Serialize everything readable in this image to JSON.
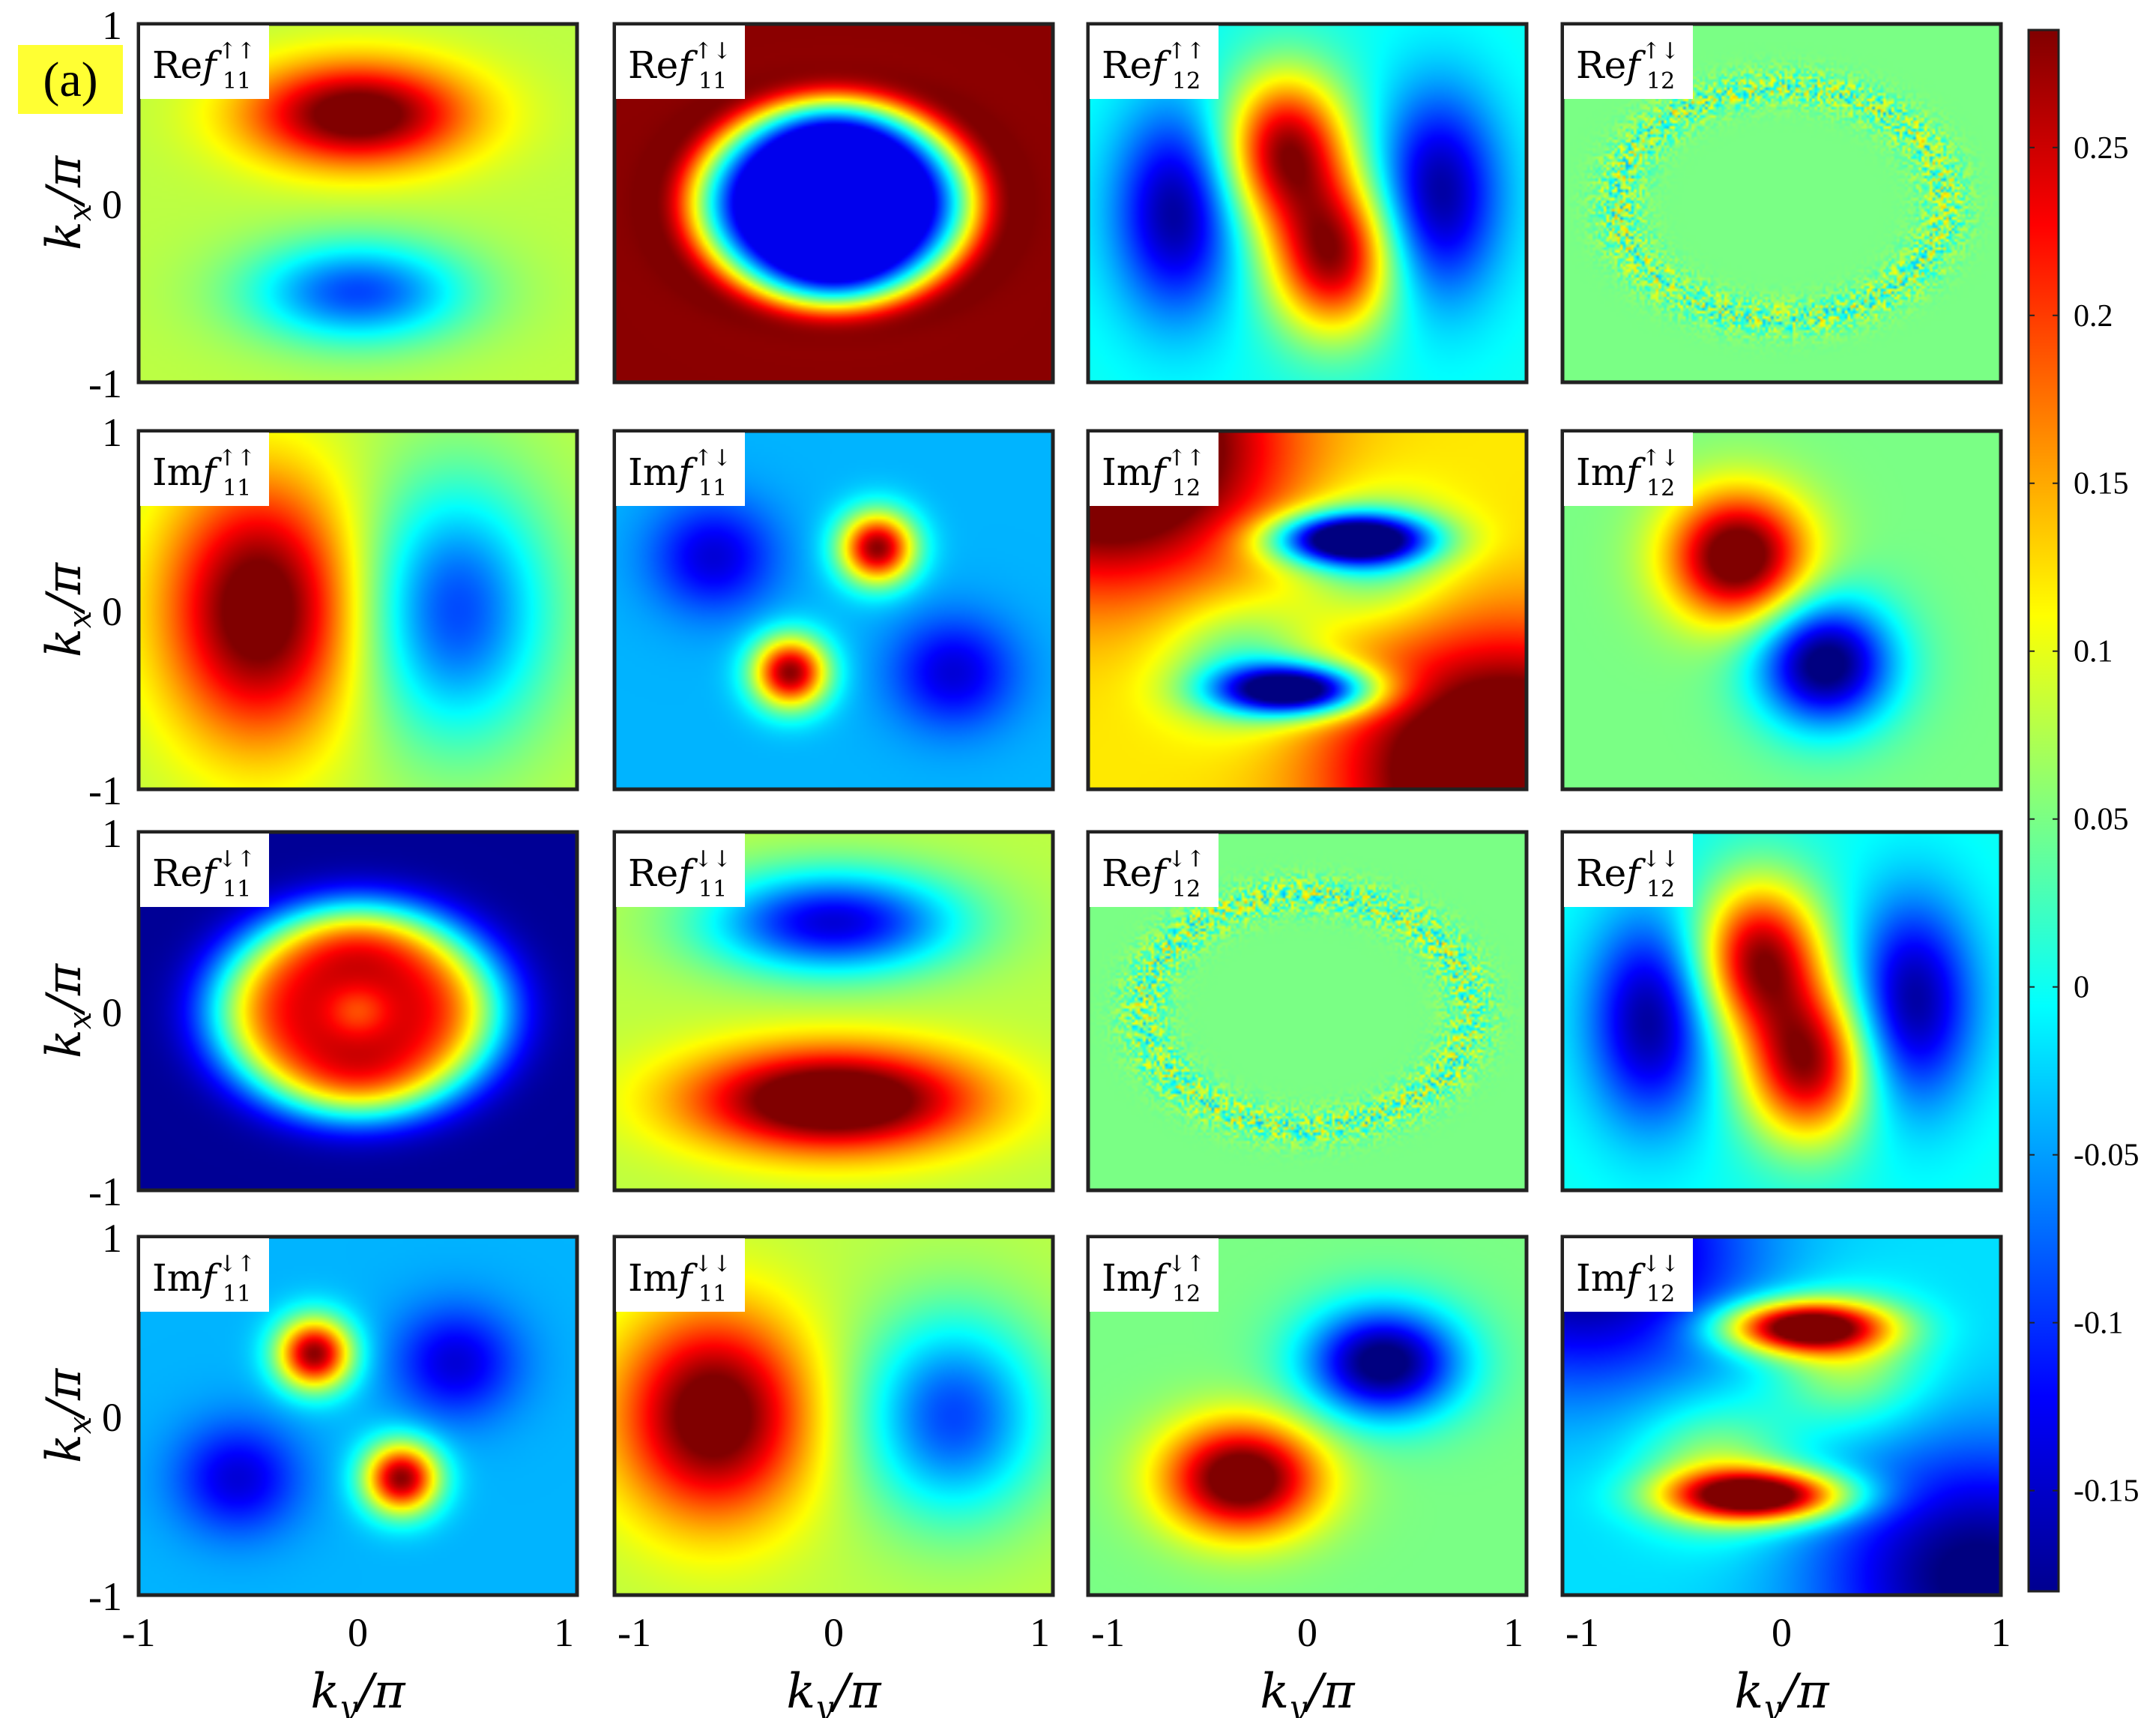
{
  "panel_label": "(a)",
  "chart_data": {
    "type": "heatmap",
    "grid": "4x4",
    "colormap": "jet",
    "panels": [
      {
        "title_prefix": "Re",
        "title_sub": "11",
        "title_sup": "↑↑",
        "pattern": [
          {
            "cx": 0,
            "cy": -0.5,
            "sx": 0.35,
            "sy": 0.2,
            "a": 0.24
          },
          {
            "cx": 0,
            "cy": 0.5,
            "sx": 0.35,
            "sy": 0.2,
            "a": -0.17
          }
        ],
        "base": 0.08
      },
      {
        "title_prefix": "Re",
        "title_sub": "11",
        "title_sup": "↑↓",
        "pattern": "ring_low",
        "base": 0.0
      },
      {
        "title_prefix": "Re",
        "title_sub": "12",
        "title_sup": "↑↑",
        "pattern": [
          {
            "cx": -0.1,
            "cy": -0.3,
            "sx": 0.2,
            "sy": 0.3,
            "a": 0.27
          },
          {
            "cx": 0.12,
            "cy": 0.3,
            "sx": 0.2,
            "sy": 0.3,
            "a": 0.27
          },
          {
            "cx": -0.6,
            "cy": 0.05,
            "sx": 0.2,
            "sy": 0.4,
            "a": -0.17
          },
          {
            "cx": 0.6,
            "cy": -0.05,
            "sx": 0.2,
            "sy": 0.4,
            "a": -0.17
          }
        ],
        "base": 0.0
      },
      {
        "title_prefix": "Re",
        "title_sub": "12",
        "title_sup": "↑↓",
        "pattern": "noise",
        "base": 0.05
      },
      {
        "title_prefix": "Im",
        "title_sub": "11",
        "title_sup": "↑↑",
        "pattern": [
          {
            "cx": -0.45,
            "cy": 0,
            "sx": 0.3,
            "sy": 0.5,
            "a": 0.24
          },
          {
            "cx": 0.45,
            "cy": 0,
            "sx": 0.3,
            "sy": 0.5,
            "a": -0.17
          }
        ],
        "base": 0.08
      },
      {
        "title_prefix": "Im",
        "title_sub": "11",
        "title_sup": "↑↓",
        "pattern": [
          {
            "cx": 0.2,
            "cy": -0.35,
            "sx": 0.12,
            "sy": 0.14,
            "a": 0.32
          },
          {
            "cx": -0.2,
            "cy": 0.35,
            "sx": 0.12,
            "sy": 0.14,
            "a": 0.32
          },
          {
            "cx": -0.55,
            "cy": -0.3,
            "sx": 0.2,
            "sy": 0.22,
            "a": -0.1
          },
          {
            "cx": 0.55,
            "cy": 0.35,
            "sx": 0.2,
            "sy": 0.22,
            "a": -0.1
          }
        ],
        "base": -0.04
      },
      {
        "title_prefix": "Im",
        "title_sub": "12",
        "title_sup": "↑↑",
        "pattern": "im12uu",
        "base": 0.0
      },
      {
        "title_prefix": "Im",
        "title_sub": "12",
        "title_sup": "↑↓",
        "pattern": [
          {
            "cx": -0.2,
            "cy": -0.3,
            "sx": 0.22,
            "sy": 0.25,
            "a": 0.28
          },
          {
            "cx": 0.2,
            "cy": 0.3,
            "sx": 0.22,
            "sy": 0.25,
            "a": -0.25
          }
        ],
        "base": 0.05
      },
      {
        "title_prefix": "Re",
        "title_sub": "11",
        "title_sup": "↓↑",
        "pattern": "ring_high",
        "base": 0.0
      },
      {
        "title_prefix": "Re",
        "title_sub": "11",
        "title_sup": "↓↓",
        "pattern": [
          {
            "cx": 0,
            "cy": -0.5,
            "sx": 0.4,
            "sy": 0.2,
            "a": -0.22
          },
          {
            "cx": 0,
            "cy": 0.5,
            "sx": 0.45,
            "sy": 0.2,
            "a": 0.28
          }
        ],
        "base": 0.08
      },
      {
        "title_prefix": "Re",
        "title_sub": "12",
        "title_sup": "↓↑",
        "pattern": "noise",
        "base": 0.05
      },
      {
        "title_prefix": "Re",
        "title_sub": "12",
        "title_sup": "↓↓",
        "pattern": [
          {
            "cx": -0.1,
            "cy": -0.3,
            "sx": 0.2,
            "sy": 0.3,
            "a": 0.27
          },
          {
            "cx": 0.12,
            "cy": 0.3,
            "sx": 0.2,
            "sy": 0.3,
            "a": 0.27
          },
          {
            "cx": -0.6,
            "cy": 0.05,
            "sx": 0.2,
            "sy": 0.4,
            "a": -0.17
          },
          {
            "cx": 0.6,
            "cy": -0.05,
            "sx": 0.2,
            "sy": 0.4,
            "a": -0.17
          }
        ],
        "base": 0.0
      },
      {
        "title_prefix": "Im",
        "title_sub": "11",
        "title_sup": "↓↑",
        "pattern": [
          {
            "cx": -0.2,
            "cy": -0.35,
            "sx": 0.12,
            "sy": 0.14,
            "a": 0.32
          },
          {
            "cx": 0.2,
            "cy": 0.35,
            "sx": 0.12,
            "sy": 0.14,
            "a": 0.32
          },
          {
            "cx": 0.45,
            "cy": -0.3,
            "sx": 0.2,
            "sy": 0.22,
            "a": -0.1
          },
          {
            "cx": -0.55,
            "cy": 0.35,
            "sx": 0.2,
            "sy": 0.22,
            "a": -0.1
          }
        ],
        "base": -0.04
      },
      {
        "title_prefix": "Im",
        "title_sub": "11",
        "title_sup": "↓↓",
        "pattern": [
          {
            "cx": -0.55,
            "cy": 0,
            "sx": 0.3,
            "sy": 0.4,
            "a": 0.24
          },
          {
            "cx": 0.55,
            "cy": 0,
            "sx": 0.3,
            "sy": 0.4,
            "a": -0.17
          }
        ],
        "base": 0.08
      },
      {
        "title_prefix": "Im",
        "title_sub": "12",
        "title_sup": "↓↑",
        "pattern": [
          {
            "cx": -0.3,
            "cy": 0.35,
            "sx": 0.25,
            "sy": 0.22,
            "a": 0.28
          },
          {
            "cx": 0.35,
            "cy": -0.3,
            "sx": 0.25,
            "sy": 0.22,
            "a": -0.25
          }
        ],
        "base": 0.05
      },
      {
        "title_prefix": "Im",
        "title_sub": "12",
        "title_sup": "↓↓",
        "pattern": "im12dd",
        "base": 0.0
      }
    ],
    "xlabel_var": "k",
    "xlabel_sub": "y",
    "xlabel_tail": "/π",
    "ylabel_var": "k",
    "ylabel_sub": "x",
    "ylabel_tail": "/π",
    "x_ticks": [
      "-1",
      "0",
      "1"
    ],
    "y_ticks": [
      "1",
      "0",
      "-1"
    ],
    "xlim": [
      -1,
      1
    ],
    "ylim": [
      -1,
      1
    ],
    "colorbar": {
      "min": -0.18,
      "max": 0.285,
      "ticks": [
        "0.25",
        "0.2",
        "0.15",
        "0.1",
        "0.05",
        "0",
        "-0.05",
        "-0.1",
        "-0.15"
      ],
      "tick_values": [
        0.25,
        0.2,
        0.15,
        0.1,
        0.05,
        0,
        -0.05,
        -0.1,
        -0.15
      ]
    }
  }
}
